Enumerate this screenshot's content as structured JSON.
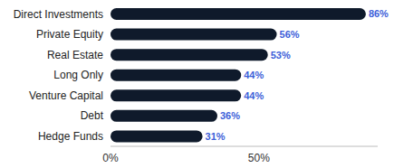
{
  "chart_data": {
    "type": "bar",
    "orientation": "horizontal",
    "categories": [
      "Direct Investments",
      "Private Equity",
      "Real Estate",
      "Long Only",
      "Venture Capital",
      "Debt",
      "Hedge Funds"
    ],
    "values": [
      86,
      56,
      53,
      44,
      44,
      36,
      31
    ],
    "value_labels": [
      "86%",
      "56%",
      "53%",
      "44%",
      "44%",
      "36%",
      "31%"
    ],
    "data_labels": true,
    "color": "#0f1a2b",
    "xlim": [
      0,
      90
    ],
    "xticks": [
      {
        "value": 0,
        "label": "0%"
      },
      {
        "value": 50,
        "label": "50%"
      }
    ],
    "grid": false
  }
}
